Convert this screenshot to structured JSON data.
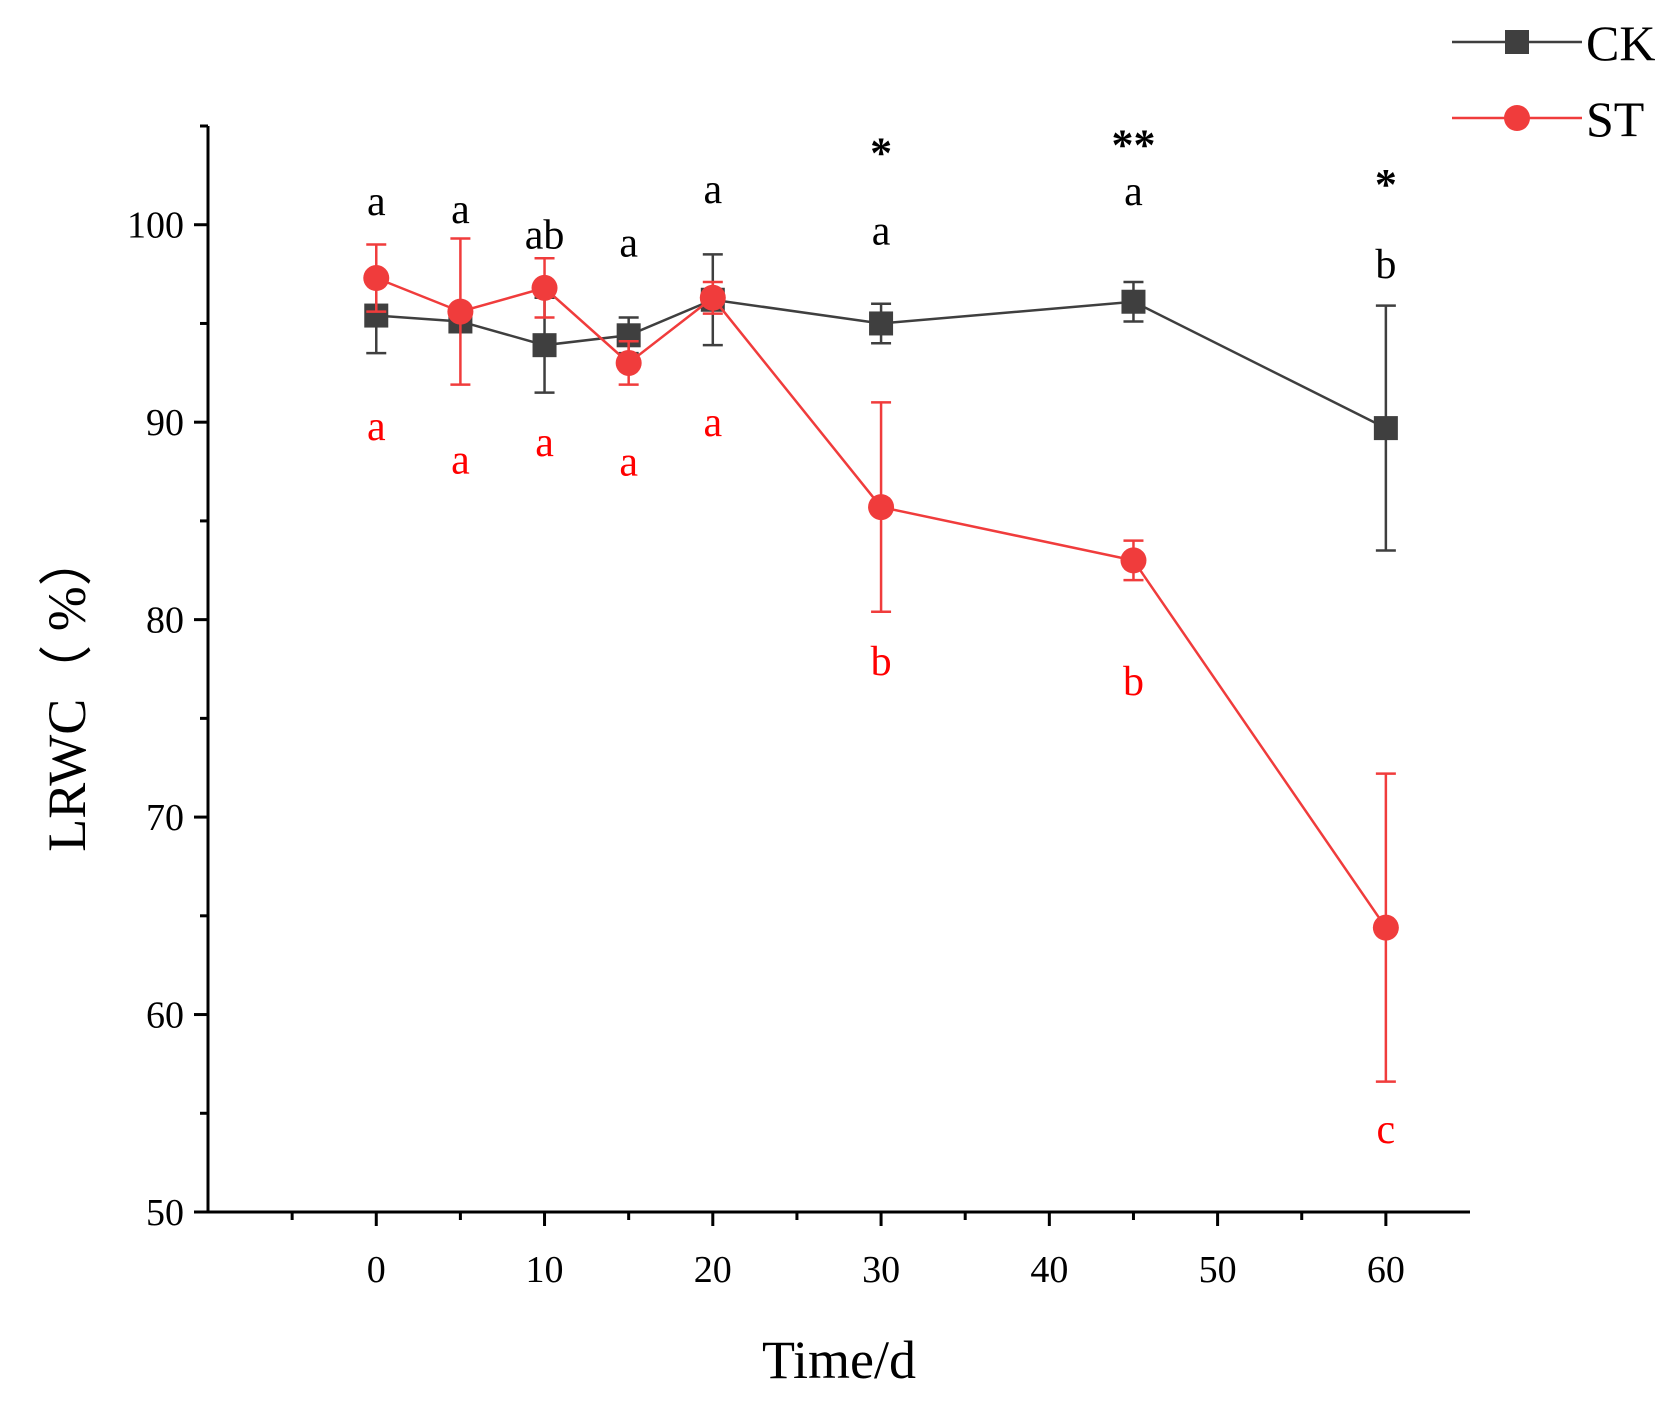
{
  "chart_data": {
    "type": "line",
    "title": "",
    "xlabel": "Time/d",
    "ylabel": "LRWC（ %）",
    "xlim": [
      -10,
      65
    ],
    "ylim": [
      50,
      105
    ],
    "xticks": [
      0,
      10,
      20,
      30,
      40,
      50,
      60
    ],
    "yticks": [
      50,
      60,
      70,
      80,
      90,
      100
    ],
    "x": [
      0,
      5,
      10,
      15,
      20,
      30,
      45,
      60
    ],
    "legend_position": "top-right",
    "series": [
      {
        "name": "CK",
        "color": "#3f3f3f",
        "marker": "square",
        "values": [
          95.4,
          95.1,
          93.9,
          94.4,
          96.2,
          95.0,
          96.1,
          89.7
        ],
        "errors": [
          1.9,
          0.0,
          2.4,
          0.9,
          2.3,
          1.0,
          1.0,
          6.2
        ],
        "letters": [
          "a",
          "a",
          "ab",
          "a",
          "a",
          "a",
          "a",
          "b"
        ],
        "letter_y": [
          101.2,
          100.8,
          99.5,
          99.1,
          101.8,
          99.7,
          101.7,
          98.0
        ]
      },
      {
        "name": "ST",
        "color": "#f03c3c",
        "marker": "circle",
        "values": [
          97.3,
          95.6,
          96.8,
          93.0,
          96.3,
          85.7,
          83.0,
          64.4
        ],
        "errors": [
          1.7,
          3.7,
          1.5,
          1.1,
          0.8,
          5.3,
          1.0,
          7.8
        ],
        "letters": [
          "a",
          "a",
          "a",
          "a",
          "a",
          "b",
          "b",
          "c"
        ],
        "letter_y": [
          89.8,
          88.1,
          89.0,
          88.0,
          90.0,
          77.9,
          76.9,
          54.2
        ]
      }
    ],
    "significance": [
      {
        "x": 30,
        "mark": "*",
        "y": 103.6
      },
      {
        "x": 45,
        "mark": "**",
        "y": 104.0
      },
      {
        "x": 60,
        "mark": "*",
        "y": 102.0
      }
    ]
  }
}
